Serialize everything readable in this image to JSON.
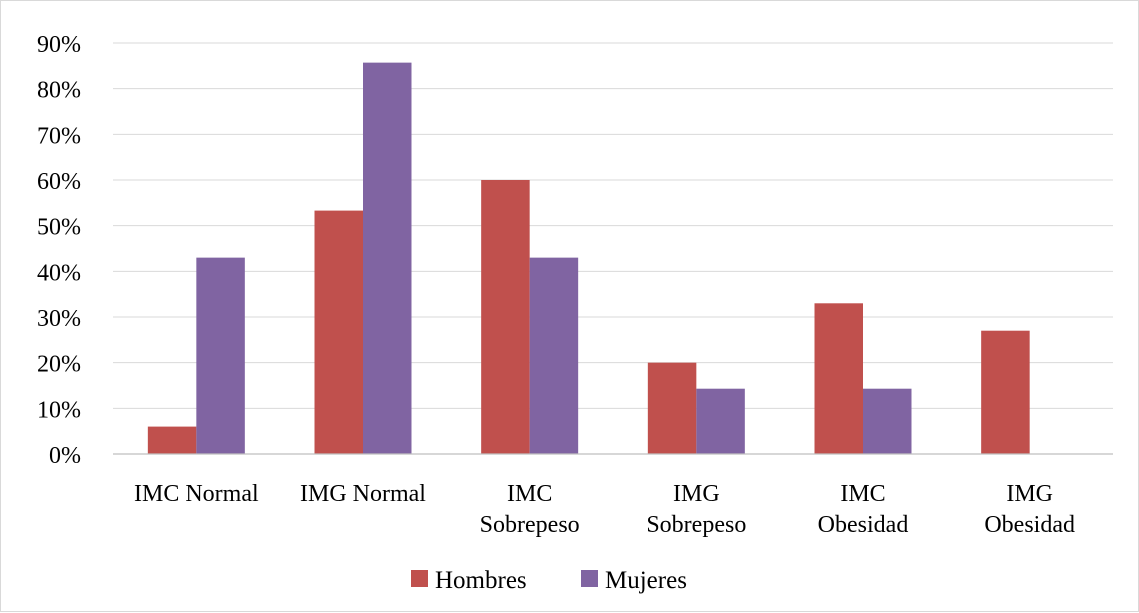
{
  "chart_data": {
    "type": "bar",
    "title": "",
    "xlabel": "",
    "ylabel": "",
    "categories": [
      [
        "IMC Normal"
      ],
      [
        "IMG Normal"
      ],
      [
        "IMC",
        "Sobrepeso"
      ],
      [
        "IMG",
        "Sobrepeso"
      ],
      [
        "IMC",
        "Obesidad"
      ],
      [
        "IMG",
        "Obesidad"
      ]
    ],
    "series": [
      {
        "name": "Hombres",
        "color": "#c0504d",
        "values": [
          6,
          53.3,
          60,
          20,
          33,
          27
        ]
      },
      {
        "name": "Mujeres",
        "color": "#8064a2",
        "values": [
          43,
          85.7,
          43,
          14.3,
          14.3,
          0
        ]
      }
    ],
    "ylim": [
      0,
      90
    ],
    "y_ticks": [
      "0%",
      "10%",
      "20%",
      "30%",
      "40%",
      "50%",
      "60%",
      "70%",
      "80%",
      "90%"
    ],
    "grid": true,
    "legend_position": "bottom"
  }
}
